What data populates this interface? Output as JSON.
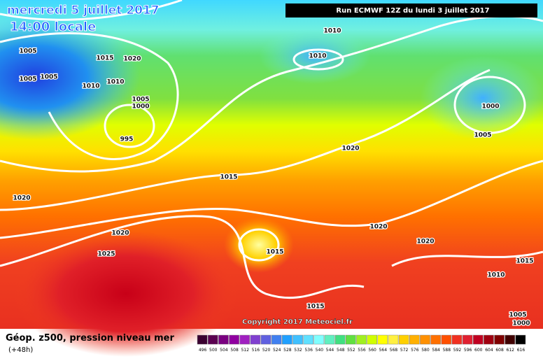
{
  "header": {
    "date": "mercredi 5 juillet 2017",
    "time": "14:00 locale",
    "run": "Run ECMWF 12Z du lundi 3 juillet 2017"
  },
  "isobar_labels": [
    "1005",
    "1015",
    "1020",
    "1005",
    "1005",
    "1010",
    "1010",
    "1005",
    "1000",
    "995",
    "1010",
    "1010",
    "1000",
    "1005",
    "1020",
    "1015",
    "1020",
    "1020",
    "1025",
    "1015",
    "1020",
    "1020",
    "1015",
    "1010",
    "1015",
    "1005",
    "1000"
  ],
  "copyright": "Copyright 2017 Meteociel.fr",
  "legend": {
    "title": "Géop. z500, pression niveau mer",
    "horizon": "(+48h)",
    "labels": [
      "496",
      "500",
      "504",
      "508",
      "512",
      "516",
      "520",
      "524",
      "528",
      "532",
      "536",
      "540",
      "544",
      "548",
      "552",
      "556",
      "560",
      "564",
      "568",
      "572",
      "576",
      "580",
      "584",
      "588",
      "592",
      "596",
      "600",
      "604",
      "608",
      "612",
      "616"
    ],
    "colors": [
      "#3a0030",
      "#5a0050",
      "#7a0080",
      "#9000a0",
      "#a020c0",
      "#8040d0",
      "#6060e0",
      "#4080f0",
      "#20a0ff",
      "#40c0ff",
      "#60e0ff",
      "#80ffff",
      "#60f0c0",
      "#40e080",
      "#60e040",
      "#a0f020",
      "#d0ff00",
      "#ffff00",
      "#fff040",
      "#ffd000",
      "#ffb000",
      "#ff9000",
      "#ff7000",
      "#ff5000",
      "#f03020",
      "#e02030",
      "#c00020",
      "#a00010",
      "#800000",
      "#400000",
      "#000000"
    ]
  }
}
